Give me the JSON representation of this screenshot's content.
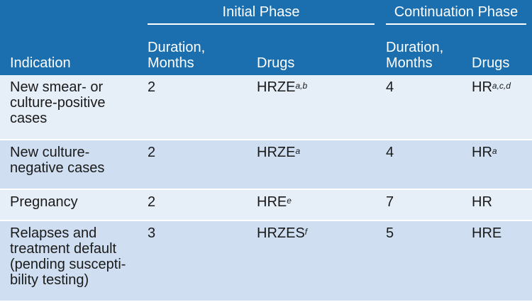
{
  "header": {
    "initial_phase": "Initial Phase",
    "continuation_phase": "Continuation Phase",
    "indication": "Indication",
    "duration_initial": "Duration, Months",
    "drugs_initial": "Drugs",
    "duration_continuation": "Duration, Months",
    "drugs_continuation": "Drugs"
  },
  "colors": {
    "header_bg": "#1b6fae",
    "row_light": "#e6eef8",
    "row_dark": "#cfdff1"
  },
  "rows": [
    {
      "indication": "New smear- or culture-positive cases",
      "initial_duration": "2",
      "initial_drugs": "HRZE",
      "initial_drugs_sup": "a,b",
      "cont_duration": "4",
      "cont_drugs": "HR",
      "cont_drugs_sup": "a,c,d"
    },
    {
      "indication": "New culture-negative cases",
      "initial_duration": "2",
      "initial_drugs": "HRZE",
      "initial_drugs_sup": "a",
      "cont_duration": "4",
      "cont_drugs": "HR",
      "cont_drugs_sup": "a"
    },
    {
      "indication": "Pregnancy",
      "initial_duration": "2",
      "initial_drugs": "HRE",
      "initial_drugs_sup": "e",
      "cont_duration": "7",
      "cont_drugs": "HR",
      "cont_drugs_sup": ""
    },
    {
      "indication": "Relapses and treatment default (pending suscepti-bility testing)",
      "initial_duration": "3",
      "initial_drugs": "HRZES",
      "initial_drugs_sup": "f",
      "cont_duration": "5",
      "cont_drugs": "HRE",
      "cont_drugs_sup": ""
    }
  ]
}
